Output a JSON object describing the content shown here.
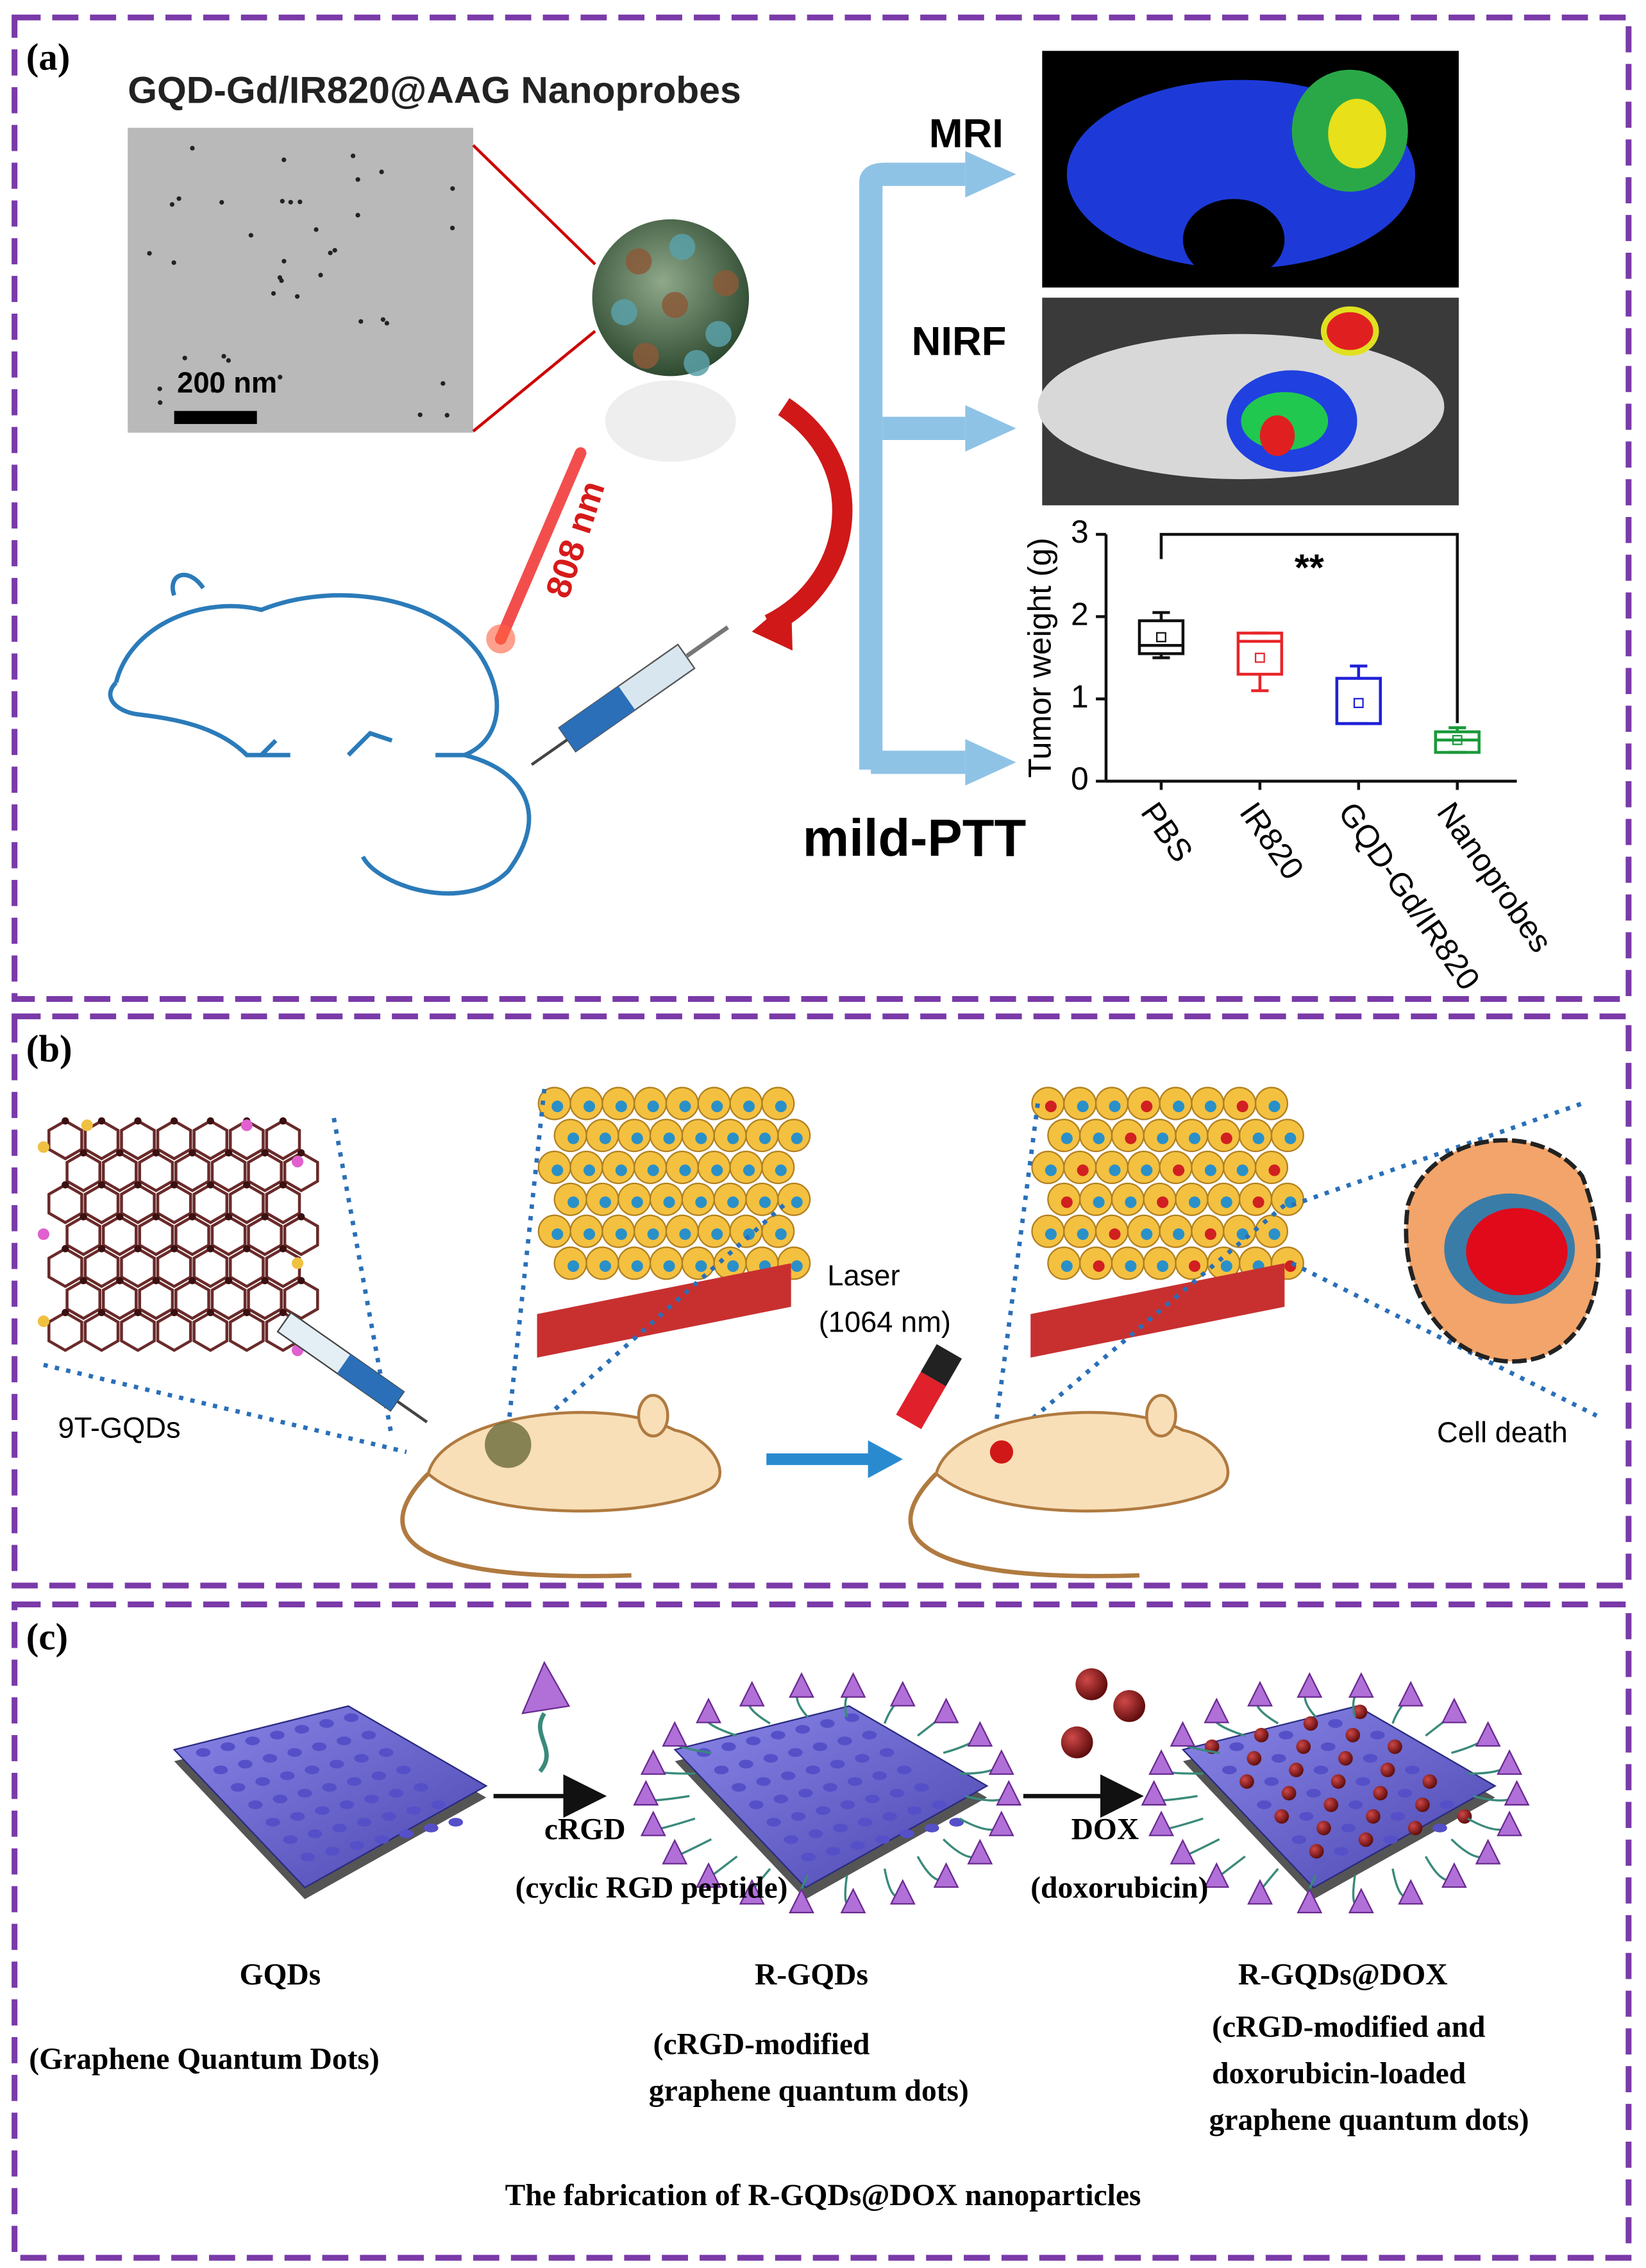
{
  "panel_a": {
    "label": "(a)",
    "title": "GQD-Gd/IR820@AAG Nanoprobes",
    "scale_bar": "200 nm",
    "laser": "808 nm",
    "branches": [
      "MRI",
      "NIRF",
      "mild-PTT"
    ],
    "chart": {
      "type": "box",
      "y_label": "Tumor weight (g)",
      "categories": [
        "PBS",
        "IR820",
        "GQD-Gd/IR820",
        "Nanoprobes"
      ],
      "colors": [
        "#111111",
        "#e8262a",
        "#2020d8",
        "#1a9a3a"
      ],
      "boxes": [
        {
          "min": 1.5,
          "q1": 1.55,
          "median": 1.65,
          "q3": 1.95,
          "max": 2.05,
          "mean": 1.75
        },
        {
          "min": 1.1,
          "q1": 1.3,
          "median": 1.7,
          "q3": 1.8,
          "max": 1.8,
          "mean": 1.5
        },
        {
          "min": 0.7,
          "q1": 0.7,
          "median": 0.7,
          "q3": 1.25,
          "max": 1.4,
          "mean": 0.95
        },
        {
          "min": 0.35,
          "q1": 0.35,
          "median": 0.5,
          "q3": 0.6,
          "max": 0.65,
          "mean": 0.5
        }
      ],
      "ylim": [
        0,
        3
      ],
      "yticks": [
        0,
        1,
        2,
        3
      ],
      "significance": "**"
    }
  },
  "panel_b": {
    "label": "(b)",
    "material": "9T-GQDs",
    "laser": "Laser",
    "wavelength": "(1064 nm)",
    "outcome": "Cell death"
  },
  "panel_c": {
    "label": "(c)",
    "step1": "cRGD",
    "step1_note": "(cyclic RGD peptide)",
    "step2": "DOX",
    "step2_note": "(doxorubicin)",
    "product1": "GQDs",
    "product1_note": "(Graphene Quantum Dots)",
    "product2": "R-GQDs",
    "product2_note": [
      "(cRGD-modified",
      "graphene quantum dots)"
    ],
    "product3": "R-GQDs@DOX",
    "product3_note": [
      "(cRGD-modified and",
      "doxorubicin-loaded",
      "graphene quantum dots)"
    ],
    "caption": "The fabrication of R-GQDs@DOX nanoparticles"
  }
}
